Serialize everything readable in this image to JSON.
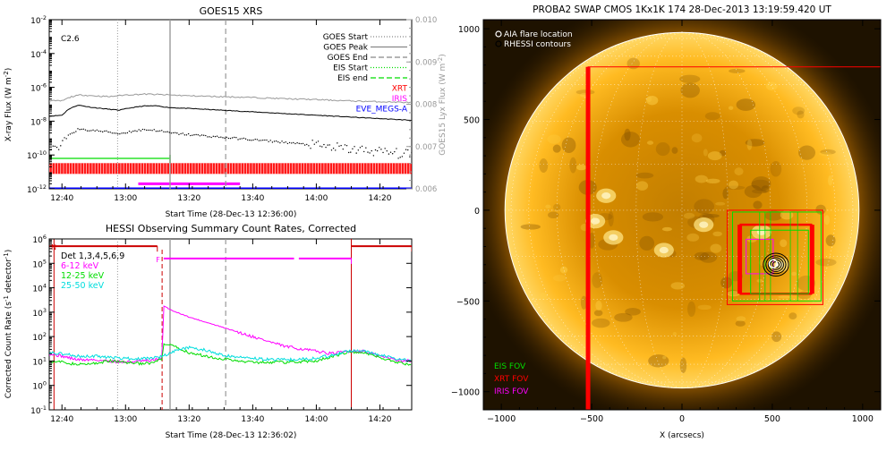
{
  "chart_data": [
    {
      "type": "line",
      "title": "GOES15 XRS",
      "xlabel": "Start Time (28-Dec-13 12:36:00)",
      "ylabel": "X-ray Flux (W m",
      "ylabel_exp": "-2",
      "y2label": "GOES15 Lyx Flux (W m",
      "y2label_exp": "-2",
      "flare_class": "C2.6",
      "x_ticks": [
        "12:40",
        "13:00",
        "13:20",
        "13:40",
        "14:00",
        "14:20"
      ],
      "x_tick_minutes": [
        40,
        60,
        80,
        100,
        120,
        140
      ],
      "xlim_minutes": [
        36,
        150
      ],
      "y_log": true,
      "ylim_exp": [
        -12,
        -2
      ],
      "y_tick_exps": [
        -12,
        -10,
        -8,
        -6,
        -4,
        -2
      ],
      "y_tick_base": "10",
      "y2lim": [
        0.006,
        0.01
      ],
      "y2_ticks": [
        "0.006",
        "0.007",
        "0.008",
        "0.009",
        "0.010"
      ],
      "y2_tick_values": [
        0.006,
        0.007,
        0.008,
        0.009,
        0.01
      ],
      "legend": {
        "placement": "top-right",
        "items": [
          {
            "label": "GOES Start",
            "color": "#888888",
            "style": "dotted"
          },
          {
            "label": "GOES Peak",
            "color": "#888888",
            "style": "solid"
          },
          {
            "label": "GOES End",
            "color": "#888888",
            "style": "dashed"
          },
          {
            "label": "EIS Start",
            "color": "#00dd00",
            "style": "dotted"
          },
          {
            "label": "EIS end",
            "color": "#00dd00",
            "style": "dashed"
          },
          {
            "label": "XRT",
            "color": "#ff0000",
            "style": "text"
          },
          {
            "label": "IRIS",
            "color": "#ff00ff",
            "style": "text"
          },
          {
            "label": "EVE_MEGS-A",
            "color": "#0000ff",
            "style": "text"
          }
        ]
      },
      "markers_minutes": {
        "goes_start": 57.5,
        "goes_peak": 74,
        "goes_end": 91.5
      },
      "series": [
        {
          "name": "",
          "color": "#000000",
          "x": [
            36,
            40,
            42,
            45,
            50,
            55,
            58,
            62,
            66,
            70,
            74,
            80,
            90,
            100,
            110,
            120,
            130,
            140,
            150
          ],
          "log_y": [
            -7.7,
            -7.65,
            -7.3,
            -7.05,
            -7.2,
            -7.3,
            -7.35,
            -7.2,
            -7.1,
            -7.1,
            -7.2,
            -7.25,
            -7.35,
            -7.45,
            -7.55,
            -7.65,
            -7.75,
            -7.85,
            -7.95
          ]
        },
        {
          "name": "",
          "color": "#999999",
          "x": [
            36,
            40,
            43,
            46,
            50,
            55,
            60,
            66,
            70,
            74,
            80,
            90,
            100,
            110,
            120,
            130,
            140,
            150
          ],
          "y2": [
            0.00808,
            0.00808,
            0.00818,
            0.00822,
            0.0082,
            0.00818,
            0.00822,
            0.00824,
            0.00823,
            0.00822,
            0.0082,
            0.00818,
            0.00816,
            0.00813,
            0.00811,
            0.00808,
            0.00806,
            0.00804
          ]
        },
        {
          "name": "",
          "color": "#000000",
          "style": "dotted",
          "x": [
            36,
            38,
            40,
            42,
            45,
            50,
            55,
            58,
            62,
            66,
            70,
            74,
            80,
            90,
            100,
            110,
            120,
            130,
            140,
            150
          ],
          "log_y": [
            -9.8,
            -9.7,
            -9.5,
            -8.8,
            -8.5,
            -8.55,
            -8.65,
            -8.75,
            -8.6,
            -8.5,
            -8.55,
            -8.7,
            -8.8,
            -8.95,
            -9.1,
            -9.25,
            -9.45,
            -9.65,
            -9.8,
            -10.0
          ]
        }
      ],
      "coverage_bars": [
        {
          "label": "EIS",
          "color": "#00dd00",
          "log_y": -10.2,
          "from": 36,
          "to": 74
        },
        {
          "label": "XRT",
          "color": "#ff0000",
          "log_y": -10.8,
          "from": 36,
          "to": 150
        },
        {
          "label": "IRIS",
          "color": "#ff00ff",
          "log_y": -11.7,
          "from": 64,
          "to": 96
        },
        {
          "label": "EVE_MEGS-A",
          "color": "#0000ff",
          "log_y": -12.0,
          "from": 36,
          "to": 150
        }
      ]
    },
    {
      "type": "line",
      "title": "HESSI Observing Summary Count Rates, Corrected",
      "xlabel": "Start Time (28-Dec-13 12:36:02)",
      "ylabel": "Corrected Count Rate (s",
      "ylabel_exp": "-1",
      "ylabel_tail": "detector",
      "x_ticks": [
        "12:40",
        "13:00",
        "13:20",
        "13:40",
        "14:00",
        "14:20"
      ],
      "x_tick_minutes": [
        40,
        60,
        80,
        100,
        120,
        140
      ],
      "xlim_minutes": [
        36,
        150
      ],
      "y_log": true,
      "ylim_exp": [
        -1,
        6
      ],
      "y_tick_exps": [
        -1,
        0,
        1,
        2,
        3,
        4,
        5,
        6
      ],
      "y_tick_base": "10",
      "legend": {
        "placement": "top-left",
        "items": [
          {
            "label": "Det 1,3,4,5,6,9",
            "color": "#000000"
          },
          {
            "label": "6-12 keV",
            "color": "#ff00ff"
          },
          {
            "label": "12-25 keV",
            "color": "#00dd00"
          },
          {
            "label": "25-50 keV",
            "color": "#00dddd"
          }
        ]
      },
      "flags": [
        {
          "label": "N",
          "color": "#cc0000",
          "from": 36,
          "to": 70,
          "log_y": 5.7
        },
        {
          "label": "N",
          "color": "#cc0000",
          "from": 131,
          "to": 150,
          "log_y": 5.7
        },
        {
          "label": "F",
          "color": "#ff00ff",
          "from": 72,
          "to": 131,
          "log_y": 5.2
        }
      ],
      "markers_minutes": {
        "goes_start": 57.5,
        "goes_peak": 74,
        "goes_end": 91.5,
        "attenuator": 71.5,
        "night_start": 37.5,
        "night_end": 131
      },
      "series": [
        {
          "name": "6-12 keV",
          "color": "#ff00ff",
          "x": [
            36,
            40,
            45,
            50,
            55,
            60,
            65,
            68,
            70,
            71.5,
            72,
            75,
            80,
            85,
            90,
            95,
            100,
            105,
            110,
            115,
            120,
            125,
            130,
            135,
            140,
            145,
            150
          ],
          "log_y": [
            1.3,
            1.2,
            1.05,
            1.05,
            1.0,
            0.95,
            1.0,
            1.0,
            1.1,
            1.1,
            3.25,
            3.05,
            2.8,
            2.6,
            2.4,
            2.2,
            2.0,
            1.8,
            1.6,
            1.5,
            1.4,
            1.3,
            1.4,
            1.4,
            1.2,
            1.05,
            1.0
          ]
        },
        {
          "name": "12-25 keV",
          "color": "#00dd00",
          "x": [
            36,
            40,
            45,
            50,
            55,
            60,
            65,
            68,
            70,
            71.5,
            72,
            75,
            80,
            85,
            90,
            95,
            100,
            110,
            120,
            125,
            130,
            135,
            140,
            145,
            150
          ],
          "log_y": [
            1.0,
            0.95,
            0.85,
            0.9,
            1.0,
            0.95,
            0.9,
            0.9,
            1.0,
            1.05,
            1.7,
            1.6,
            1.35,
            1.2,
            1.1,
            1.0,
            0.95,
            0.95,
            1.0,
            1.2,
            1.35,
            1.35,
            1.15,
            0.95,
            0.85
          ]
        },
        {
          "name": "25-50 keV",
          "color": "#00dddd",
          "x": [
            36,
            40,
            45,
            50,
            55,
            60,
            65,
            68,
            70,
            72,
            75,
            80,
            85,
            90,
            95,
            100,
            110,
            120,
            125,
            130,
            135,
            140,
            145,
            150
          ],
          "log_y": [
            1.35,
            1.3,
            1.2,
            1.2,
            1.15,
            1.1,
            1.1,
            1.1,
            1.15,
            1.2,
            1.4,
            1.55,
            1.45,
            1.25,
            1.15,
            1.1,
            1.05,
            1.1,
            1.25,
            1.4,
            1.4,
            1.25,
            1.1,
            1.0
          ]
        }
      ]
    },
    {
      "type": "scatter",
      "title": "PROBA2 SWAP CMOS 1Kx1K 174 28-Dec-2013 13:19:59.420 UT",
      "xlabel": "X (arcsecs)",
      "ylabel": "",
      "x_ticks": [
        "−1000",
        "−500",
        "0",
        "500",
        "1000"
      ],
      "x_tick_values": [
        -1000,
        -500,
        0,
        500,
        1000
      ],
      "y_ticks": [
        "−1000",
        "−500",
        "0",
        "500",
        "1000"
      ],
      "y_tick_values": [
        -1000,
        -500,
        0,
        500,
        1000
      ],
      "xlim": [
        -1100,
        1100
      ],
      "ylim": [
        -1100,
        1050
      ],
      "solar_radius_arcsec": 980,
      "legend_top": [
        {
          "label": "AIA flare location",
          "symbol": "circle"
        },
        {
          "label": "RHESSI contours",
          "symbol": "ring"
        }
      ],
      "legend_bottom": [
        {
          "label": "EIS FOV",
          "color": "#00dd00"
        },
        {
          "label": "XRT FOV",
          "color": "#ff0000"
        },
        {
          "label": "IRIS FOV",
          "color": "#ff00ff"
        }
      ],
      "flare_location": [
        520,
        -300
      ],
      "fov_boxes": [
        {
          "label": "XRT",
          "color": "#ff0000",
          "x": [
            -520,
            1100
          ],
          "y": [
            -1100,
            790
          ],
          "weight": "heavy-left"
        },
        {
          "label": "XRT",
          "color": "#ff0000",
          "x": [
            250,
            780
          ],
          "y": [
            -520,
            0
          ]
        },
        {
          "label": "XRT",
          "color": "#ff0000",
          "x": [
            320,
            720
          ],
          "y": [
            -460,
            -80
          ],
          "weight": "heavy"
        },
        {
          "label": "EIS",
          "color": "#00dd00",
          "x": [
            280,
            770
          ],
          "y": [
            -500,
            -10
          ]
        },
        {
          "label": "EIS",
          "color": "#00dd00",
          "x": [
            380,
            700
          ],
          "y": [
            -460,
            -110
          ]
        },
        {
          "label": "IRIS",
          "color": "#ff00ff",
          "x": [
            355,
            505
          ],
          "y": [
            -350,
            -160
          ]
        }
      ]
    }
  ]
}
